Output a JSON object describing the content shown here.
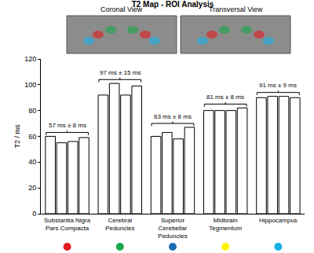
{
  "chart_data": {
    "type": "bar",
    "title": "T2 Map - ROI Analysis",
    "panel_labels": [
      "Coronal View",
      "Transversal View"
    ],
    "categories": [
      "Substantia Nigra Pars Compacta",
      "Cerebral Peduncles",
      "Superior Cerebellar Peduncles",
      "Midbrain Tegmentum",
      "Hippocampus"
    ],
    "group_labels": [
      "57 ms ± 8 ms",
      "97 ms ± 15 ms",
      "63 ms ± 8 ms",
      "81 ms ± 8 ms",
      "91 ms ± 9 ms"
    ],
    "colors": [
      "#e3191c",
      "#18a84a",
      "#1a6db3",
      "#fff200",
      "#17b0e8"
    ],
    "series": [
      {
        "color": "#ffffff",
        "values": [
          60,
          92,
          60,
          80,
          90
        ]
      },
      {
        "color": "#ffffff",
        "values": [
          55,
          101,
          63,
          80,
          91
        ]
      },
      {
        "color": "#ffffff",
        "values": [
          56,
          92,
          58,
          80,
          91
        ]
      },
      {
        "color": "#ffffff",
        "values": [
          59,
          99,
          67,
          82,
          90
        ]
      }
    ],
    "y_label": "T2 / ms",
    "ylim": [
      0,
      120
    ],
    "yticks": [
      0,
      20,
      40,
      60,
      80,
      100,
      120
    ],
    "grid": false
  }
}
